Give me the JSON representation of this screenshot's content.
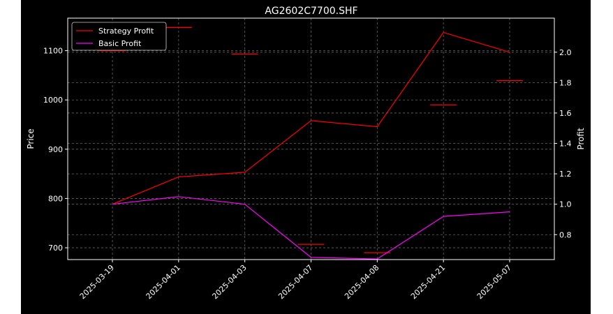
{
  "chart_data": {
    "type": "line",
    "title": "AG2602C7700.SHF",
    "ylabel_left": "Price",
    "ylabel_right": "Profit",
    "categories": [
      "2025-03-19",
      "2025-04-01",
      "2025-04-03",
      "2025-04-07",
      "2025-04-08",
      "2025-04-21",
      "2025-05-07"
    ],
    "price_ticks": [
      700,
      800,
      900,
      1000,
      1100
    ],
    "profit_ticks": [
      "0.8",
      "1.0",
      "1.2",
      "1.4",
      "1.6",
      "1.8",
      "2.0"
    ],
    "ylim_left": [
      676,
      1166
    ],
    "ylim_right": [
      0.636,
      2.224
    ],
    "price_markers": [
      1100,
      1147,
      1093,
      707,
      690,
      990,
      1039
    ],
    "series": [
      {
        "name": "Strategy Profit",
        "axis": "right",
        "color": "#ff0000",
        "values": [
          1.0,
          1.18,
          1.21,
          1.55,
          1.51,
          2.13,
          2.0
        ]
      },
      {
        "name": "Basic Profit",
        "axis": "right",
        "color": "#ff00ff",
        "values": [
          1.0,
          1.05,
          1.0,
          0.65,
          0.64,
          0.92,
          0.95
        ]
      }
    ],
    "marker_color": "#ff0000",
    "grid": true,
    "legend_position": "top-left"
  }
}
